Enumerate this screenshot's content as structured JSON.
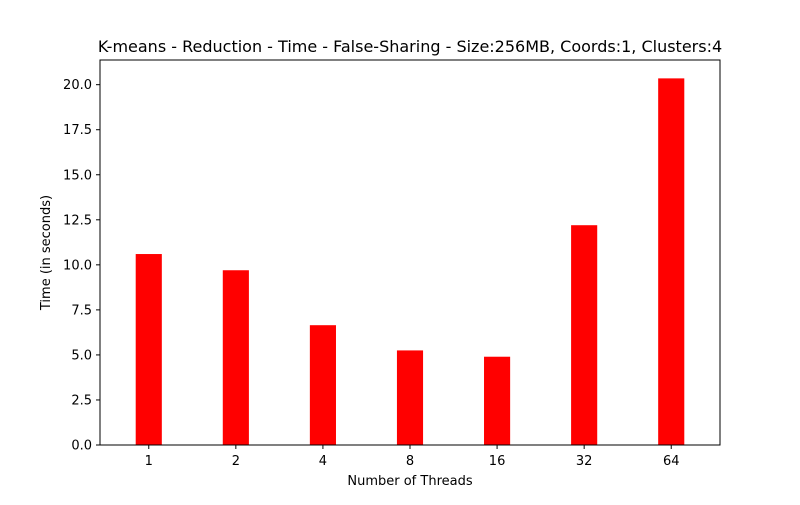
{
  "chart_data": {
    "type": "bar",
    "title": "K-means - Reduction - Time - False-Sharing - Size:256MB, Coords:1, Clusters:4",
    "xlabel": "Number of Threads",
    "ylabel": "Time (in seconds)",
    "categories": [
      "1",
      "2",
      "4",
      "8",
      "16",
      "32",
      "64"
    ],
    "values": [
      10.6,
      9.7,
      6.65,
      5.25,
      4.9,
      12.2,
      20.35
    ],
    "ylim": [
      0,
      21.37
    ],
    "yticks": [
      0.0,
      2.5,
      5.0,
      7.5,
      10.0,
      12.5,
      15.0,
      17.5,
      20.0
    ],
    "ytick_labels": [
      "0.0",
      "2.5",
      "5.0",
      "7.5",
      "10.0",
      "12.5",
      "15.0",
      "17.5",
      "20.0"
    ],
    "bar_color": "#ff0000",
    "grid": false,
    "legend": false
  }
}
